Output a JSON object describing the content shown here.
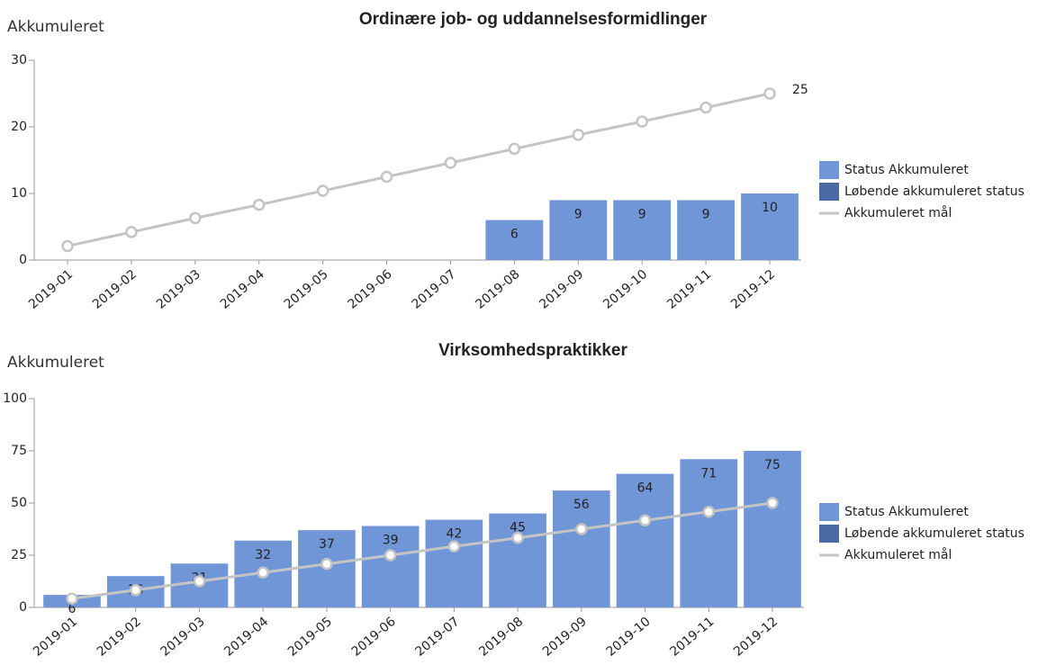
{
  "chart_data": [
    {
      "type": "combo",
      "title": "Ordinære job- og uddannelsesformidlinger",
      "y_label": "Akkumuleret",
      "categories": [
        "2019-01",
        "2019-02",
        "2019-03",
        "2019-04",
        "2019-05",
        "2019-06",
        "2019-07",
        "2019-08",
        "2019-09",
        "2019-10",
        "2019-11",
        "2019-12"
      ],
      "series": [
        {
          "name": "Status Akkumuleret",
          "type": "bar",
          "color": "#7196d8",
          "data_labels": "all",
          "values": [
            null,
            null,
            null,
            null,
            null,
            null,
            null,
            6,
            9,
            9,
            9,
            10
          ]
        },
        {
          "name": "Løbende akkumuleret status",
          "type": "bar",
          "color": "#4a6aa5",
          "values": [
            null,
            null,
            null,
            null,
            null,
            null,
            null,
            null,
            null,
            null,
            null,
            null
          ]
        },
        {
          "name": "Akkumuleret mål",
          "type": "line",
          "color": "#c4c4c4",
          "data_labels": "last",
          "values": [
            2.1,
            4.2,
            6.3,
            8.3,
            10.4,
            12.5,
            14.6,
            16.7,
            18.8,
            20.8,
            22.9,
            25
          ]
        }
      ],
      "ylim": [
        0,
        30
      ],
      "yticks": [
        0,
        10,
        20,
        30
      ]
    },
    {
      "type": "combo",
      "title": "Virksomhedspraktikker",
      "y_label": "Akkumuleret",
      "categories": [
        "2019-01",
        "2019-02",
        "2019-03",
        "2019-04",
        "2019-05",
        "2019-06",
        "2019-07",
        "2019-08",
        "2019-09",
        "2019-10",
        "2019-11",
        "2019-12"
      ],
      "series": [
        {
          "name": "Status Akkumuleret",
          "type": "bar",
          "color": "#7196d8",
          "data_labels": "all",
          "values": [
            6,
            15,
            21,
            32,
            37,
            39,
            42,
            45,
            56,
            64,
            71,
            75
          ]
        },
        {
          "name": "Løbende akkumuleret status",
          "type": "bar",
          "color": "#4a6aa5",
          "values": [
            null,
            null,
            null,
            null,
            null,
            null,
            null,
            null,
            null,
            null,
            null,
            null
          ]
        },
        {
          "name": "Akkumuleret mål",
          "type": "line",
          "color": "#c4c4c4",
          "values": [
            4.2,
            8.3,
            12.5,
            16.7,
            20.8,
            25,
            29.2,
            33.3,
            37.5,
            41.7,
            45.8,
            50
          ]
        }
      ],
      "ylim": [
        0,
        100
      ],
      "yticks": [
        0,
        25,
        50,
        75,
        100
      ]
    }
  ]
}
